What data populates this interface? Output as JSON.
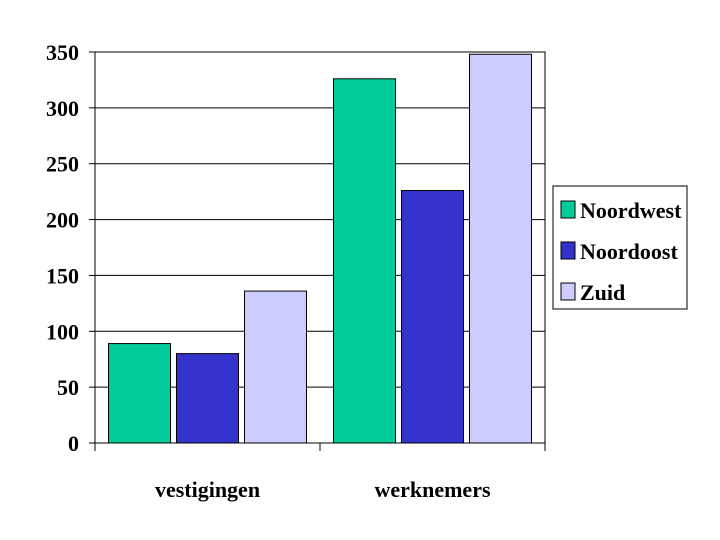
{
  "chart_data": {
    "type": "bar",
    "title": "",
    "xlabel": "",
    "ylabel": "",
    "categories": [
      "vestigingen",
      "werknemers"
    ],
    "series": [
      {
        "name": "Noordwest",
        "color": "#00CC99",
        "values": [
          89,
          326
        ]
      },
      {
        "name": "Noordoost",
        "color": "#3333CC",
        "values": [
          80,
          226
        ]
      },
      {
        "name": "Zuid",
        "color": "#CCCCFF",
        "values": [
          136,
          348
        ]
      }
    ],
    "ylim": [
      0,
      350
    ],
    "yticks": [
      "0",
      "50",
      "100",
      "150",
      "200",
      "250",
      "300",
      "350"
    ],
    "grid": true,
    "legend": "right"
  }
}
